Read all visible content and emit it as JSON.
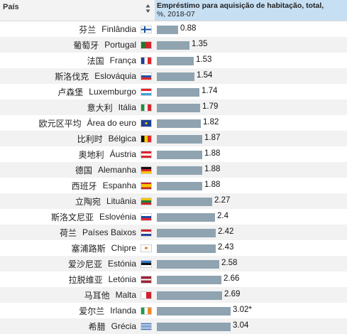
{
  "header": {
    "country_label": "País",
    "value_label": "Empréstimo para aquisição de habitação, total,",
    "value_sub": "%, 2018-07"
  },
  "chart_data": {
    "type": "bar",
    "orientation": "horizontal",
    "xlim": [
      0,
      3.1
    ],
    "rows": [
      {
        "cn": "芬兰",
        "pt": "Finlândia",
        "value": 0.88,
        "label": "0.88",
        "flag": "fi"
      },
      {
        "cn": "葡萄牙",
        "pt": "Portugal",
        "value": 1.35,
        "label": "1.35",
        "flag": "pt"
      },
      {
        "cn": "法国",
        "pt": "França",
        "value": 1.53,
        "label": "1.53",
        "flag": "fr"
      },
      {
        "cn": "斯洛伐克",
        "pt": "Eslováquia",
        "value": 1.54,
        "label": "1.54",
        "flag": "sk"
      },
      {
        "cn": "卢森堡",
        "pt": "Luxemburgo",
        "value": 1.74,
        "label": "1.74",
        "flag": "lu"
      },
      {
        "cn": "意大利",
        "pt": "Itália",
        "value": 1.79,
        "label": "1.79",
        "flag": "it"
      },
      {
        "cn": "欧元区平均",
        "pt": "Área do euro",
        "value": 1.82,
        "label": "1.82",
        "flag": "eu"
      },
      {
        "cn": "比利时",
        "pt": "Bélgica",
        "value": 1.87,
        "label": "1.87",
        "flag": "be"
      },
      {
        "cn": "奥地利",
        "pt": "Áustria",
        "value": 1.88,
        "label": "1.88",
        "flag": "at"
      },
      {
        "cn": "德国",
        "pt": "Alemanha",
        "value": 1.88,
        "label": "1.88",
        "flag": "de"
      },
      {
        "cn": "西班牙",
        "pt": "Espanha",
        "value": 1.88,
        "label": "1.88",
        "flag": "es"
      },
      {
        "cn": "立陶宛",
        "pt": "Lituânia",
        "value": 2.27,
        "label": "2.27",
        "flag": "lt"
      },
      {
        "cn": "斯洛文尼亚",
        "pt": "Eslovénia",
        "value": 2.4,
        "label": "2.4",
        "flag": "si"
      },
      {
        "cn": "荷兰",
        "pt": "Países Baixos",
        "value": 2.42,
        "label": "2.42",
        "flag": "nl"
      },
      {
        "cn": "塞浦路斯",
        "pt": "Chipre",
        "value": 2.43,
        "label": "2.43",
        "flag": "cy"
      },
      {
        "cn": "爱沙尼亚",
        "pt": "Estónia",
        "value": 2.58,
        "label": "2.58",
        "flag": "ee"
      },
      {
        "cn": "拉脱维亚",
        "pt": "Letónia",
        "value": 2.66,
        "label": "2.66",
        "flag": "lv"
      },
      {
        "cn": "马耳他",
        "pt": "Malta",
        "value": 2.69,
        "label": "2.69",
        "flag": "mt"
      },
      {
        "cn": "爱尔兰",
        "pt": "Irlanda",
        "value": 3.02,
        "label": "3.02*",
        "flag": "ie"
      },
      {
        "cn": "希腊",
        "pt": "Grécia",
        "value": 3.04,
        "label": "3.04",
        "flag": "gr"
      }
    ]
  },
  "flags": {
    "fi": "linear-gradient(90deg, transparent 28%, #1a4f9e 28%, #1a4f9e 42%, transparent 42%), linear-gradient(180deg, #fff 40%, #1a4f9e 40%, #1a4f9e 60%, #fff 60%)",
    "pt": "linear-gradient(90deg, #1e7a2e 40%, #d3252a 40%)",
    "fr": "linear-gradient(90deg, #1f3e95 33%, #ffffff 33%, #ffffff 66%, #e0262e 66%)",
    "sk": "linear-gradient(180deg, #ffffff 33%, #2052a3 33%, #2052a3 66%, #e0262e 66%)",
    "lu": "linear-gradient(180deg, #e0262e 33%, #ffffff 33%, #ffffff 66%, #3fa0dd 66%)",
    "it": "linear-gradient(90deg, #1f8f3e 33%, #ffffff 33%, #ffffff 66%, #d7262e 66%)",
    "eu": "radial-gradient(circle, #f5d000 0 18%, transparent 19%), #1c3f95",
    "be": "linear-gradient(90deg, #111 33%, #f6d200 33%, #f6d200 66%, #e0262e 66%)",
    "at": "linear-gradient(180deg, #d8252e 33%, #ffffff 33%, #ffffff 66%, #d8252e 66%)",
    "de": "linear-gradient(180deg, #111 33%, #d8252e 33%, #d8252e 66%, #f6c500 66%)",
    "es": "linear-gradient(180deg, #c8252c 25%, #f7c500 25%, #f7c500 75%, #c8252c 75%)",
    "lt": "linear-gradient(180deg, #f5c300 33%, #1e7a3c 33%, #1e7a3c 66%, #c8252c 66%)",
    "si": "linear-gradient(180deg, #ffffff 33%, #1f47a0 33%, #1f47a0 66%, #e0262e 66%)",
    "nl": "linear-gradient(180deg, #c8252c 33%, #ffffff 33%, #ffffff 66%, #23479b 66%)",
    "cy": "radial-gradient(ellipse at 50% 45%, #d58a2a 0 22%, transparent 24%), #ffffff",
    "ee": "linear-gradient(180deg, #2e76c8 33%, #111 33%, #111 66%, #ffffff 66%)",
    "lv": "linear-gradient(180deg, #9b2436 40%, #ffffff 40%, #ffffff 60%, #9b2436 60%)",
    "mt": "linear-gradient(90deg, #ffffff 50%, #d0202e 50%)",
    "ie": "linear-gradient(90deg, #1f9a48 33%, #ffffff 33%, #ffffff 66%, #f2882b 66%)",
    "gr": "linear-gradient(180deg, #2a62b8 11%, #fff 11%, #fff 22%, #2a62b8 22%, #2a62b8 33%, #fff 33%, #fff 44%, #2a62b8 44%, #2a62b8 55%, #fff 55%, #fff 66%, #2a62b8 66%, #2a62b8 77%, #fff 77%, #fff 88%, #2a62b8 88%)"
  },
  "colors": {
    "bar": "#8fa3b0",
    "header_value_bg": "#c7dff2"
  }
}
